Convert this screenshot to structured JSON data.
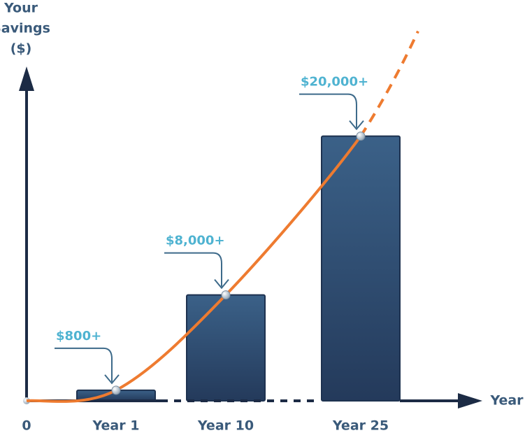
{
  "chart_data": {
    "type": "bar",
    "ylabel": [
      "Your",
      "Savings",
      "($)"
    ],
    "xlabel": "Year",
    "categories": [
      "Year 1",
      "Year 10",
      "Year 25"
    ],
    "values": [
      800,
      8000,
      20000
    ],
    "value_labels": [
      "$800+",
      "$8,000+",
      "$20,000+"
    ],
    "color": "#2f4d73",
    "line_color": "#ee7b30",
    "ylim": [
      0,
      25000
    ],
    "yticks": [
      0
    ]
  }
}
